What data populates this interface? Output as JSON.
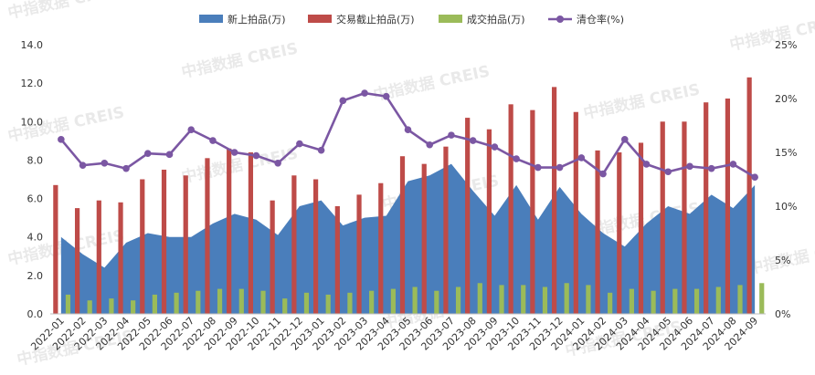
{
  "chart_data": {
    "type": "bar",
    "categories": [
      "2022-01",
      "2022-02",
      "2022-03",
      "2022-04",
      "2022-05",
      "2022-06",
      "2022-07",
      "2022-08",
      "2022-09",
      "2022-10",
      "2022-11",
      "2022-12",
      "2023-01",
      "2023-02",
      "2023-03",
      "2023-04",
      "2023-05",
      "2023-06",
      "2023-07",
      "2023-08",
      "2023-09",
      "2023-10",
      "2023-11",
      "2023-12",
      "2024-01",
      "2024-02",
      "2024-03",
      "2024-04",
      "2024-05",
      "2024-06",
      "2024-07",
      "2024-08",
      "2024-09"
    ],
    "series": [
      {
        "name": "新上拍品(万)",
        "kind": "area",
        "axis": "left",
        "color": "#4a7ebb",
        "values": [
          4.0,
          3.1,
          2.4,
          3.7,
          4.2,
          4.0,
          4.0,
          4.7,
          5.2,
          4.9,
          4.1,
          5.6,
          5.9,
          4.6,
          5.0,
          5.1,
          6.9,
          7.2,
          7.8,
          6.4,
          5.1,
          6.7,
          4.9,
          6.6,
          5.2,
          4.2,
          3.5,
          4.7,
          5.6,
          5.2,
          6.2,
          5.5,
          6.7
        ]
      },
      {
        "name": "交易截止拍品(万)",
        "kind": "bar",
        "axis": "left",
        "color": "#be4b48",
        "values": [
          6.7,
          5.5,
          5.9,
          5.8,
          7.0,
          7.5,
          7.2,
          8.1,
          8.6,
          8.4,
          5.9,
          7.2,
          7.0,
          5.6,
          6.2,
          6.8,
          8.2,
          7.8,
          8.7,
          10.2,
          9.6,
          10.9,
          10.6,
          11.8,
          10.5,
          8.5,
          8.4,
          8.9,
          10.0,
          10.0,
          11.0,
          11.2,
          12.3
        ]
      },
      {
        "name": "成交拍品(万)",
        "kind": "bar",
        "axis": "left",
        "color": "#9bbb59",
        "values": [
          1.0,
          0.7,
          0.8,
          0.7,
          1.0,
          1.1,
          1.2,
          1.3,
          1.3,
          1.2,
          0.8,
          1.1,
          1.0,
          1.1,
          1.2,
          1.3,
          1.4,
          1.2,
          1.4,
          1.6,
          1.5,
          1.5,
          1.4,
          1.6,
          1.5,
          1.1,
          1.3,
          1.2,
          1.3,
          1.3,
          1.4,
          1.5,
          1.6
        ]
      },
      {
        "name": "清仓率(%)",
        "kind": "line",
        "axis": "right",
        "color": "#7b57a3",
        "values": [
          16.2,
          13.8,
          14.0,
          13.5,
          14.9,
          14.8,
          17.1,
          16.1,
          15.0,
          14.7,
          14.0,
          15.8,
          15.2,
          19.8,
          20.5,
          20.2,
          17.1,
          15.7,
          16.6,
          16.1,
          15.5,
          14.4,
          13.6,
          13.6,
          14.5,
          13.0,
          16.2,
          13.9,
          13.2,
          13.7,
          13.5,
          13.9,
          12.7
        ]
      }
    ],
    "y_left": {
      "range": [
        0,
        14
      ],
      "ticks": [
        "0.0",
        "2.0",
        "4.0",
        "6.0",
        "8.0",
        "10.0",
        "12.0",
        "14.0"
      ]
    },
    "y_right": {
      "range": [
        0,
        25
      ],
      "ticks": [
        "0%",
        "5%",
        "10%",
        "15%",
        "20%",
        "25%"
      ]
    },
    "legend_position": "top",
    "grid": false
  },
  "watermark": "中指数据 CREIS"
}
